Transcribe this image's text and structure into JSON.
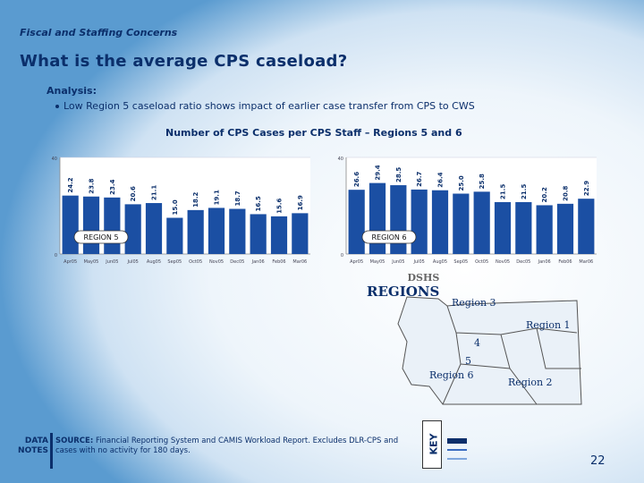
{
  "header": {
    "section": "Fiscal and Staffing Concerns",
    "title": "What is the average CPS caseload?"
  },
  "analysis": {
    "heading": "Analysis:",
    "bullet": "Low Region 5 caseload ratio shows impact of earlier case transfer from CPS to CWS"
  },
  "chart_title": "Number of CPS Cases per CPS Staff – Regions 5 and 6",
  "chart_data": [
    {
      "type": "bar",
      "name": "REGION 5",
      "categories": [
        "Apr05",
        "May05",
        "Jun05",
        "Jul05",
        "Aug05",
        "Sep05",
        "Oct05",
        "Nov05",
        "Dec05",
        "Jan06",
        "Feb06",
        "Mar06"
      ],
      "values": [
        24.2,
        23.8,
        23.4,
        20.6,
        21.1,
        15.0,
        18.2,
        19.1,
        18.7,
        16.5,
        15.6,
        16.9
      ],
      "ylim": [
        0,
        40
      ],
      "yticks": [
        "0",
        "40"
      ],
      "bar_color": "#1b4fa3"
    },
    {
      "type": "bar",
      "name": "REGION 6",
      "categories": [
        "Apr05",
        "May05",
        "Jun05",
        "Jul05",
        "Aug05",
        "Sep05",
        "Oct05",
        "Nov05",
        "Dec05",
        "Jan06",
        "Feb06",
        "Mar06"
      ],
      "values": [
        26.6,
        29.4,
        28.5,
        26.7,
        26.4,
        25.0,
        25.8,
        21.5,
        21.5,
        20.2,
        20.8,
        22.9
      ],
      "ylim": [
        0,
        40
      ],
      "yticks": [
        "0",
        "40"
      ],
      "bar_color": "#1b4fa3"
    }
  ],
  "map": {
    "dshs": "DSHS",
    "title": "REGIONS",
    "labels": [
      "Region 3",
      "Region 1",
      "4",
      "5",
      "Region 6",
      "Region 2"
    ]
  },
  "notes": {
    "label": "DATA NOTES",
    "source_label": "SOURCE:",
    "source_text": "Financial Reporting System and CAMIS Workload Report. Excludes DLR-CPS and cases with no activity for 180 days."
  },
  "key": {
    "label": "KEY",
    "colors": [
      "#0b2f6b",
      "#3a6cc0",
      "#7fa7dd"
    ]
  },
  "page_number": "22"
}
